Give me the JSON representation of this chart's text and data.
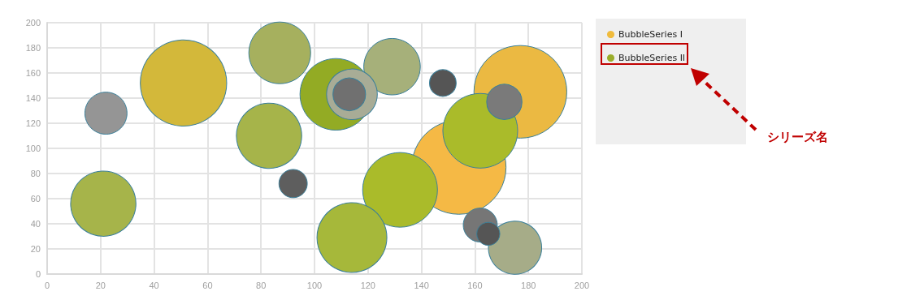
{
  "chart_data": {
    "type": "bubble",
    "series": [
      {
        "name": "BubbleSeries I",
        "color": "#f0bb3c",
        "x": [
          22,
          51,
          92,
          148,
          177,
          154
        ],
        "values": [
          128,
          152,
          72,
          152,
          145,
          85
        ],
        "sizes": [
          0.2,
          0.84,
          0.09,
          0.08,
          0.97,
          1
        ],
        "colors": [
          "#959595",
          "#d3b83a",
          "#5e5e5e",
          "#555555",
          "#ebb942",
          "#f5b945"
        ]
      },
      {
        "name": "BubbleSeries II",
        "color": "#9aad2a",
        "x": [
          21,
          87,
          83,
          129,
          132,
          114,
          175,
          108,
          114,
          113,
          162,
          171,
          162,
          165
        ],
        "values": [
          56,
          176,
          110,
          165,
          67,
          29,
          21,
          143,
          143,
          143,
          114,
          137,
          39,
          32
        ],
        "sizes": [
          0.48,
          0.43,
          0.48,
          0.36,
          0.63,
          0.55,
          0.32,
          0.58,
          0.29,
          0.12,
          0.63,
          0.14,
          0.13,
          0.06
        ],
        "colors": [
          "#a6b44a",
          "#a6b05e",
          "#a6b44a",
          "#a6b07a",
          "#aabb2a",
          "#a6b83a",
          "#a6ac88",
          "#93ab24",
          "#a8ac96",
          "#707070",
          "#aabb2a",
          "#7a7a7a",
          "#767676",
          "#555555"
        ]
      }
    ],
    "xlim": [
      0,
      200
    ],
    "xticks": [
      0,
      20,
      40,
      60,
      80,
      100,
      120,
      140,
      160,
      180,
      200
    ],
    "ylim": [
      0,
      200
    ],
    "yticks": [
      0,
      20,
      40,
      60,
      80,
      100,
      120,
      140,
      160,
      180,
      200
    ],
    "grid": true,
    "legend": "top right",
    "annotations": [
      "シリーズ名"
    ]
  }
}
